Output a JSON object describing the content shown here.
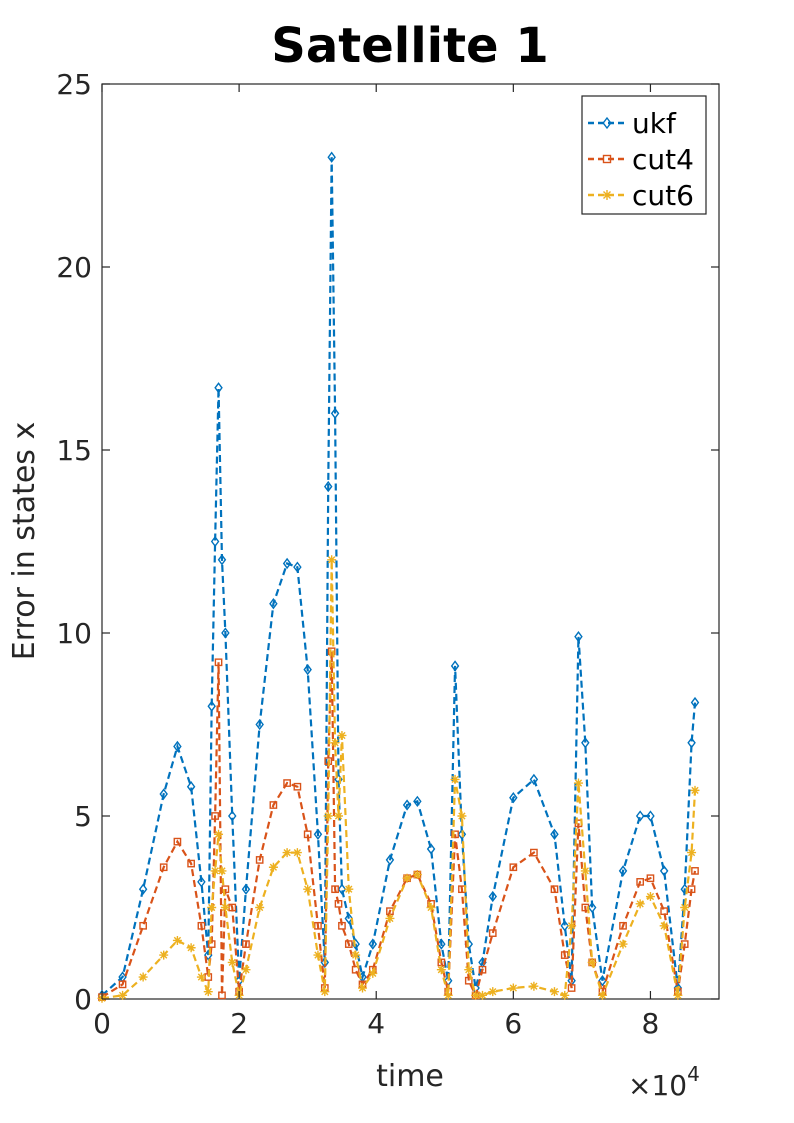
{
  "chart_data": {
    "type": "line",
    "title": "Satellite 1",
    "xlabel": "time",
    "ylabel": "Error in states x",
    "x_exponent_base": "×10",
    "x_exponent_power": "4",
    "xlim": [
      0,
      9
    ],
    "ylim": [
      0,
      25
    ],
    "xticks": [
      0,
      2,
      4,
      6,
      8
    ],
    "yticks": [
      0,
      5,
      10,
      15,
      20,
      25
    ],
    "grid": false,
    "legend_position": "top-right",
    "series": [
      {
        "name": "ukf",
        "color": "#0072BD",
        "marker": "diamond",
        "line_style": "dashed",
        "x": [
          0,
          0.3,
          0.6,
          0.9,
          1.1,
          1.3,
          1.45,
          1.55,
          1.6,
          1.65,
          1.7,
          1.75,
          1.8,
          1.9,
          2.0,
          2.1,
          2.3,
          2.5,
          2.7,
          2.85,
          3.0,
          3.15,
          3.25,
          3.3,
          3.35,
          3.4,
          3.45,
          3.5,
          3.6,
          3.7,
          3.8,
          3.95,
          4.2,
          4.45,
          4.6,
          4.8,
          4.95,
          5.05,
          5.15,
          5.25,
          5.35,
          5.45,
          5.55,
          5.7,
          6.0,
          6.3,
          6.6,
          6.75,
          6.85,
          6.95,
          7.05,
          7.15,
          7.3,
          7.6,
          7.85,
          8.0,
          8.2,
          8.4,
          8.5,
          8.6,
          8.65
        ],
        "y": [
          0.1,
          0.6,
          3.0,
          5.6,
          6.9,
          5.8,
          3.2,
          1.2,
          8.0,
          12.5,
          16.7,
          12.0,
          10.0,
          5.0,
          0.5,
          3.0,
          7.5,
          10.8,
          11.9,
          11.8,
          9.0,
          4.5,
          1.0,
          14.0,
          23.0,
          16.0,
          6.0,
          3.0,
          2.2,
          1.5,
          0.6,
          1.5,
          3.8,
          5.3,
          5.4,
          4.1,
          1.5,
          0.5,
          9.1,
          4.5,
          1.5,
          0.3,
          1.0,
          2.8,
          5.5,
          6.0,
          4.5,
          2.0,
          0.5,
          9.9,
          7.0,
          2.5,
          0.5,
          3.5,
          5.0,
          5.0,
          3.5,
          0.3,
          3.0,
          7.0,
          8.1
        ]
      },
      {
        "name": "cut4",
        "color": "#D95319",
        "marker": "square",
        "line_style": "dashed",
        "x": [
          0,
          0.3,
          0.6,
          0.9,
          1.1,
          1.3,
          1.45,
          1.55,
          1.6,
          1.65,
          1.7,
          1.75,
          1.8,
          1.9,
          2.0,
          2.1,
          2.3,
          2.5,
          2.7,
          2.85,
          3.0,
          3.15,
          3.25,
          3.3,
          3.35,
          3.4,
          3.45,
          3.5,
          3.6,
          3.7,
          3.8,
          3.95,
          4.2,
          4.45,
          4.6,
          4.8,
          4.95,
          5.05,
          5.15,
          5.25,
          5.35,
          5.45,
          5.55,
          5.7,
          6.0,
          6.3,
          6.6,
          6.75,
          6.85,
          6.95,
          7.05,
          7.15,
          7.3,
          7.6,
          7.85,
          8.0,
          8.2,
          8.4,
          8.5,
          8.6,
          8.65
        ],
        "y": [
          0.05,
          0.4,
          2.0,
          3.6,
          4.3,
          3.7,
          2.0,
          0.6,
          1.5,
          5.0,
          9.2,
          0.1,
          3.0,
          2.5,
          0.2,
          1.5,
          3.8,
          5.3,
          5.9,
          5.8,
          4.5,
          2.0,
          0.3,
          6.5,
          9.5,
          3.0,
          2.6,
          2.0,
          1.5,
          0.8,
          0.4,
          0.8,
          2.4,
          3.3,
          3.4,
          2.6,
          1.0,
          0.2,
          4.5,
          3.0,
          0.5,
          0.1,
          0.8,
          1.8,
          3.6,
          4.0,
          3.0,
          1.2,
          0.3,
          4.8,
          2.5,
          1.0,
          0.2,
          2.0,
          3.2,
          3.3,
          2.4,
          0.2,
          1.5,
          3.0,
          3.5
        ]
      },
      {
        "name": "cut6",
        "color": "#EDB120",
        "marker": "star",
        "line_style": "dashed",
        "x": [
          0,
          0.3,
          0.6,
          0.9,
          1.1,
          1.3,
          1.45,
          1.55,
          1.6,
          1.65,
          1.7,
          1.75,
          1.8,
          1.9,
          2.0,
          2.1,
          2.3,
          2.5,
          2.7,
          2.85,
          3.0,
          3.15,
          3.25,
          3.3,
          3.35,
          3.4,
          3.45,
          3.5,
          3.6,
          3.7,
          3.8,
          3.95,
          4.2,
          4.45,
          4.6,
          4.8,
          4.95,
          5.05,
          5.15,
          5.25,
          5.35,
          5.45,
          5.55,
          5.7,
          6.0,
          6.3,
          6.6,
          6.75,
          6.85,
          6.95,
          7.05,
          7.15,
          7.3,
          7.6,
          7.85,
          8.0,
          8.2,
          8.4,
          8.5,
          8.6,
          8.65
        ],
        "y": [
          0.02,
          0.1,
          0.6,
          1.2,
          1.6,
          1.4,
          0.6,
          0.2,
          2.5,
          3.5,
          4.5,
          3.5,
          2.5,
          1.0,
          0.1,
          0.8,
          2.5,
          3.6,
          4.0,
          4.0,
          3.0,
          1.2,
          0.2,
          5.0,
          12.0,
          7.0,
          5.0,
          7.2,
          3.0,
          1.2,
          0.3,
          0.7,
          2.2,
          3.3,
          3.4,
          2.5,
          0.8,
          0.1,
          6.0,
          5.0,
          0.8,
          0.1,
          0.1,
          0.2,
          0.3,
          0.35,
          0.2,
          0.1,
          2.0,
          5.9,
          3.5,
          1.0,
          0.1,
          1.5,
          2.6,
          2.8,
          2.0,
          0.1,
          2.5,
          4.0,
          5.7
        ]
      }
    ]
  }
}
